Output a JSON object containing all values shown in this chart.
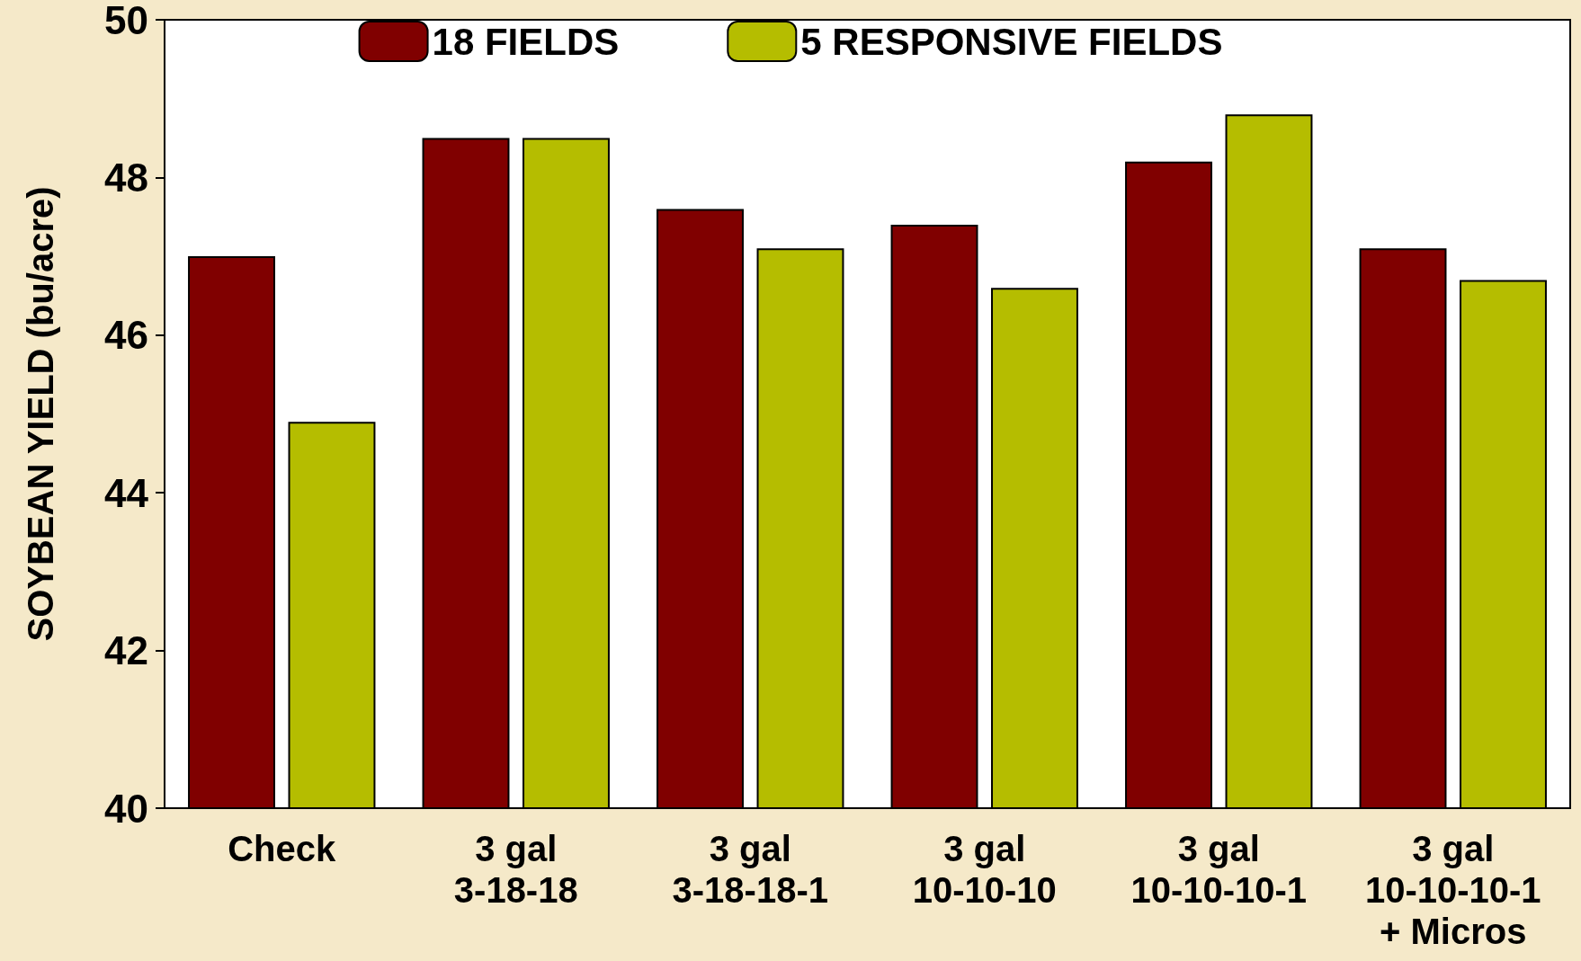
{
  "chart_data": {
    "type": "bar",
    "ylabel": "SOYBEAN YIELD (bu/acre)",
    "categories": [
      "Check",
      "3 gal\n3-18-18",
      "3 gal\n3-18-18-1",
      "3 gal\n10-10-10",
      "3 gal\n10-10-10-1",
      "3 gal\n10-10-10-1\n+ Micros"
    ],
    "series": [
      {
        "name": "18 FIELDS",
        "color": "#800000",
        "values": [
          47.0,
          48.5,
          47.6,
          47.4,
          48.2,
          47.1
        ]
      },
      {
        "name": "5 RESPONSIVE FIELDS",
        "color": "#b5bd00",
        "values": [
          44.9,
          48.5,
          47.1,
          46.6,
          48.8,
          46.7
        ]
      }
    ],
    "ylim": [
      40,
      50
    ],
    "yticks": [
      40,
      42,
      44,
      46,
      48,
      50
    ],
    "grid": false,
    "legend": "top"
  }
}
